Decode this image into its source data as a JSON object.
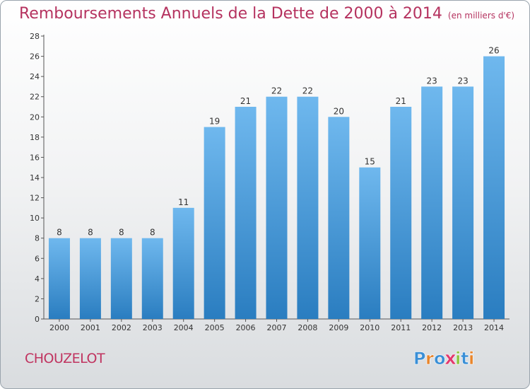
{
  "header": {
    "title": "Remboursements Annuels de la Dette de 2000 à 2014",
    "subtitle": "(en milliers d'€)"
  },
  "footer": {
    "commune": "CHOUZELOT",
    "logo_text": "Proxiti"
  },
  "colors": {
    "title": "#b5325f",
    "bar_top": "#6fb8ee",
    "bar_bottom": "#2a7dc0",
    "logo_letters": [
      "#3a8fd6",
      "#e8852b",
      "#3a8fd6",
      "#e23a6e",
      "#8cc63f",
      "#3a8fd6",
      "#e8852b"
    ]
  },
  "chart_data": {
    "type": "bar",
    "title": "Remboursements Annuels de la Dette de 2000 à 2014",
    "subtitle": "(en milliers d'€)",
    "categories": [
      "2000",
      "2001",
      "2002",
      "2003",
      "2004",
      "2005",
      "2006",
      "2007",
      "2008",
      "2009",
      "2010",
      "2011",
      "2012",
      "2013",
      "2014"
    ],
    "values": [
      8,
      8,
      8,
      8,
      11,
      19,
      21,
      22,
      22,
      20,
      15,
      21,
      23,
      23,
      26
    ],
    "ylim": [
      0,
      28
    ],
    "yticks": [
      0,
      2,
      4,
      6,
      8,
      10,
      12,
      14,
      16,
      18,
      20,
      22,
      24,
      26,
      28
    ],
    "grid": false,
    "data_labels": true
  }
}
